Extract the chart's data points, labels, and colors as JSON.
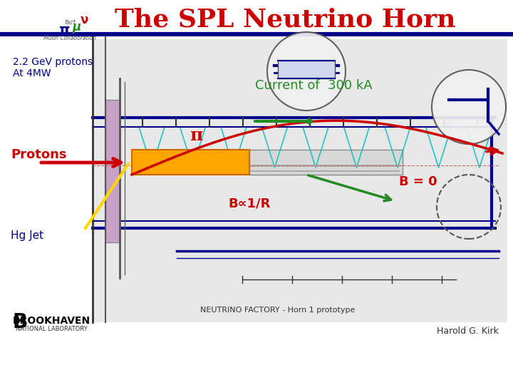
{
  "title": "The SPL Neutrino Horn",
  "title_color": "#cc0000",
  "title_fontsize": 26,
  "bg_color": "#ffffff",
  "top_line_color": "#00008B",
  "label_22gev": "2.2 GeV protons\nAt 4MW",
  "label_22gev_color": "#00008B",
  "label_22gev_fontsize": 10,
  "label_protons": "Protons",
  "label_protons_color": "#cc0000",
  "label_protons_fontsize": 13,
  "label_hgjet": "Hg Jet",
  "label_hgjet_color": "#00008B",
  "label_hgjet_fontsize": 11,
  "label_current": "Current of  300 kA",
  "label_current_color": "#228B22",
  "label_current_fontsize": 13,
  "label_pi": "π",
  "label_pi_color": "#cc0000",
  "label_pi_fontsize": 18,
  "label_b0": "B = 0",
  "label_b0_color": "#cc0000",
  "label_b0_fontsize": 13,
  "label_b1r": "B∝1/R",
  "label_b1r_color": "#cc0000",
  "label_b1r_fontsize": 13,
  "label_nf": "NEUTRINO FACTORY - Horn 1 prototype",
  "label_nf_fontsize": 8,
  "label_harold": "Harold G. Kirk",
  "label_harold_fontsize": 9,
  "proton_arrow_color": "#cc0000",
  "pi_arrow_color": "#cc0000",
  "current_arrow_color": "#228B22",
  "green_arrow2_color": "#228B22",
  "yellow_line_color": "#FFD700",
  "outer_conductor_color": "#00008B",
  "inner_conductor_color": "#FFA500",
  "cyan_color": "#00BFBF",
  "purple_color": "#C8A0C8",
  "diagram_bg": "#f0f0f0"
}
